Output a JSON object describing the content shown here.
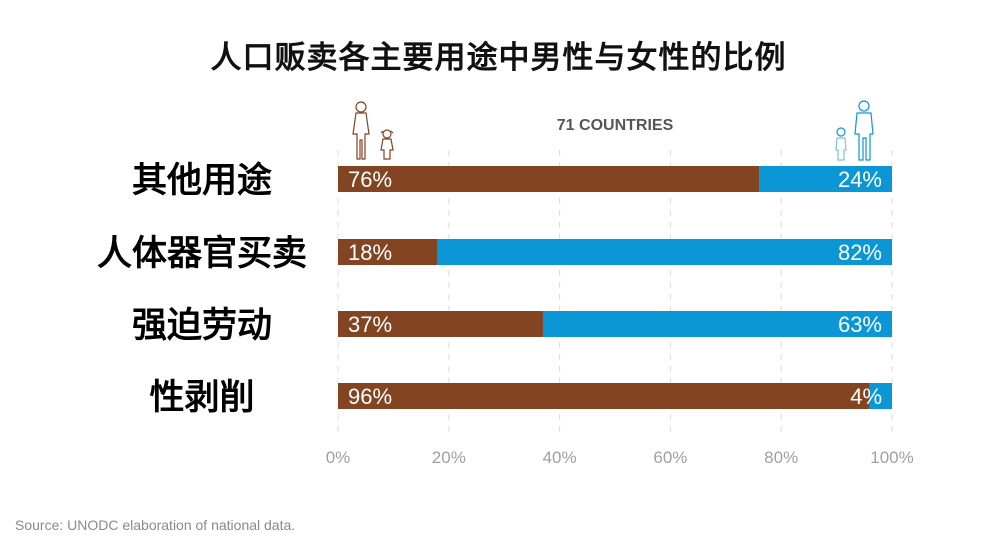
{
  "chart_data": {
    "type": "bar",
    "orientation": "horizontal",
    "stacked": true,
    "title": "人口贩卖各主要用途中男性与女性的比例",
    "subtitle": "71 COUNTRIES",
    "categories": [
      "其他用途",
      "人体器官买卖",
      "强迫劳动",
      "性剥削"
    ],
    "series": [
      {
        "values": [
          76,
          18,
          37,
          96
        ],
        "labels": [
          "76%",
          "18%",
          "37%",
          "96%"
        ],
        "color": "#834421",
        "icon": "female-and-girl-icon"
      },
      {
        "values": [
          24,
          82,
          63,
          4
        ],
        "labels": [
          "24%",
          "82%",
          "63%",
          "4%"
        ],
        "color": "#0b97d5",
        "icon": "male-and-boy-icon"
      }
    ],
    "xlim": [
      0,
      100
    ],
    "xticks": [
      "0%",
      "20%",
      "40%",
      "60%",
      "80%",
      "100%"
    ],
    "grid": true,
    "legend": "none"
  },
  "source": "Source: UNODC elaboration of national data."
}
